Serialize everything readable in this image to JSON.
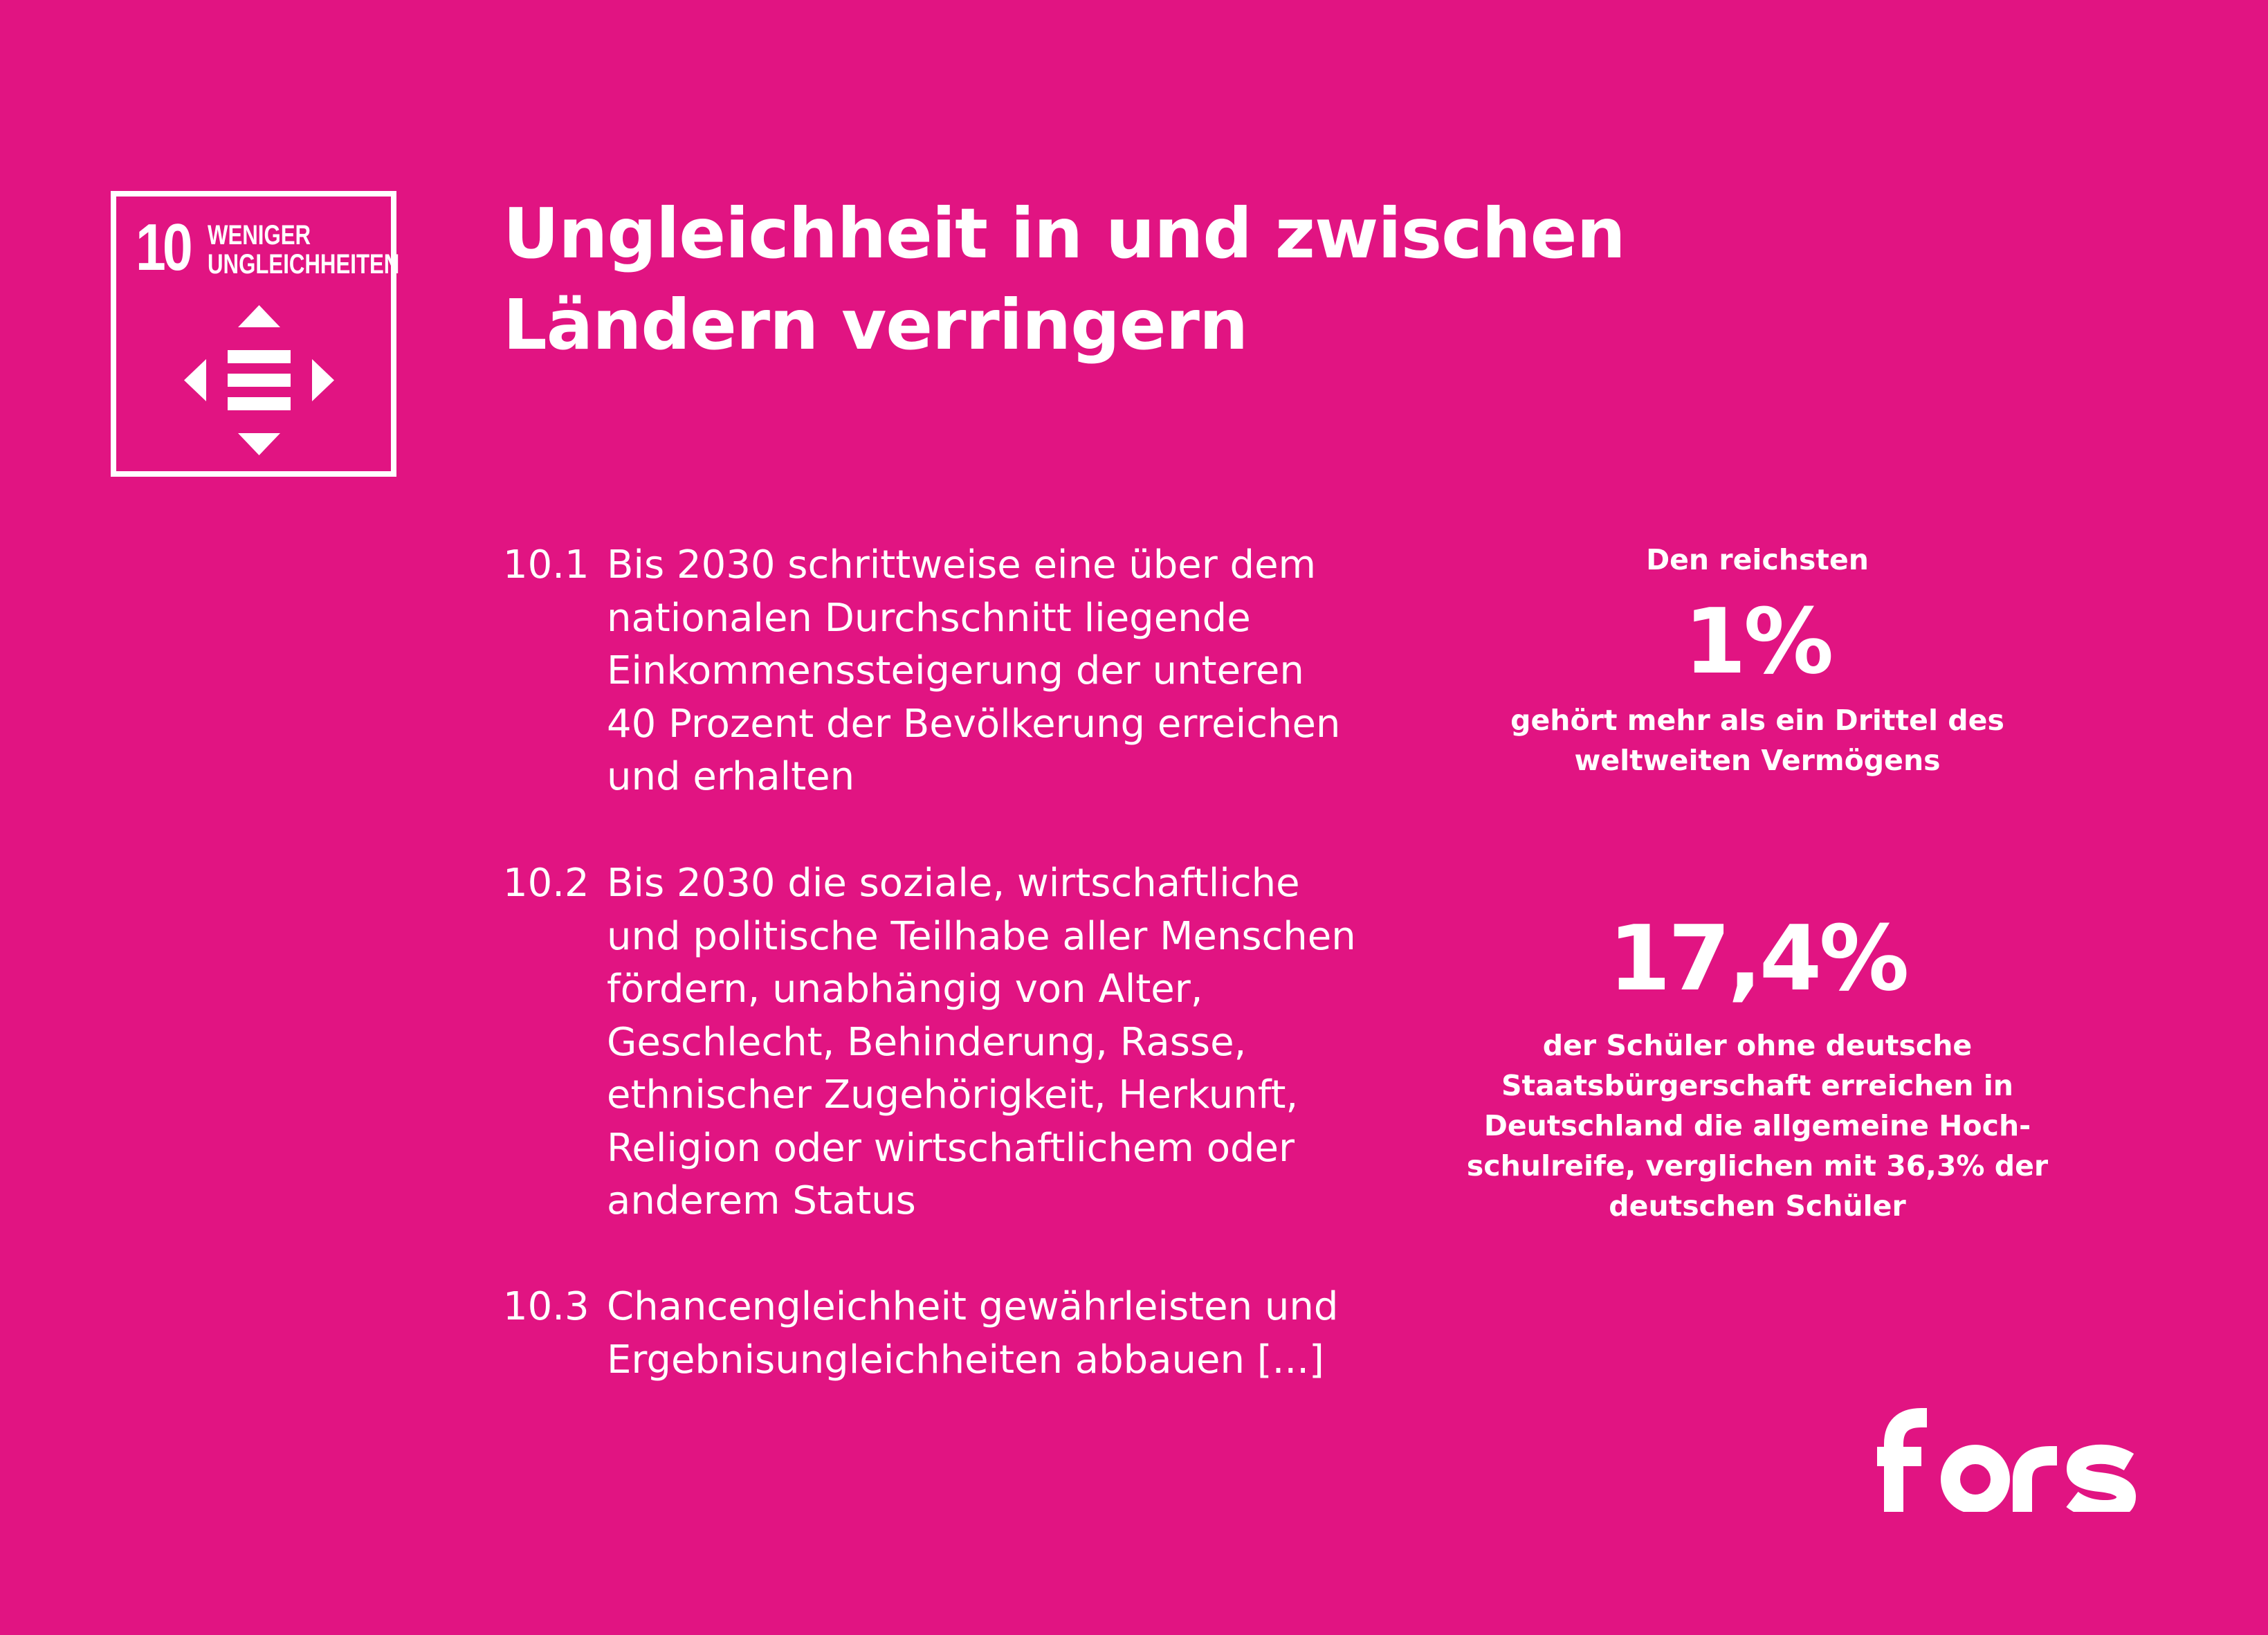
{
  "colors": {
    "background": "#E11482",
    "foreground": "#FFFFFF"
  },
  "badge": {
    "number": "10",
    "label_lines": [
      "WENIGER",
      "UNGLEICHHEITEN"
    ],
    "icon": "equality-arrows-icon"
  },
  "headline": {
    "lines": [
      "Ungleichheit in und zwischen",
      "Ländern verringern"
    ]
  },
  "targets": [
    {
      "number": "10.1",
      "lines": [
        "Bis 2030 schrittweise eine über dem",
        "nationalen Durchschnitt liegende",
        "Einkommenssteigerung der unteren",
        "40 Prozent der Bevölkerung erreichen",
        "und erhalten"
      ]
    },
    {
      "number": "10.2",
      "lines": [
        "Bis 2030 die soziale, wirtschaftliche",
        "und politische Teilhabe aller Menschen",
        "fördern, unabhängig von Alter,",
        "Geschlecht, Behinderung, Rasse,",
        "ethnischer Zugehörigkeit, Herkunft,",
        "Religion oder wirtschaftlichem oder",
        "anderem Status"
      ]
    },
    {
      "number": "10.3",
      "lines": [
        "Chancengleichheit gewährleisten und",
        "Ergebnisungleichheiten abbauen [...]"
      ]
    }
  ],
  "facts": [
    {
      "pre": "Den reichsten",
      "value": "1%",
      "post_lines": [
        "gehört mehr als ein Drittel des",
        "weltweiten Vermögens"
      ]
    },
    {
      "value": "17,4%",
      "post_lines": [
        "der Schüler ohne deutsche",
        "Staatsbürgerschaft erreichen in",
        "Deutschland die allgemeine Hoch-",
        "schulreife, verglichen mit 36,3% der",
        "deutschen Schüler"
      ]
    }
  ],
  "logo": {
    "text": "fors"
  }
}
